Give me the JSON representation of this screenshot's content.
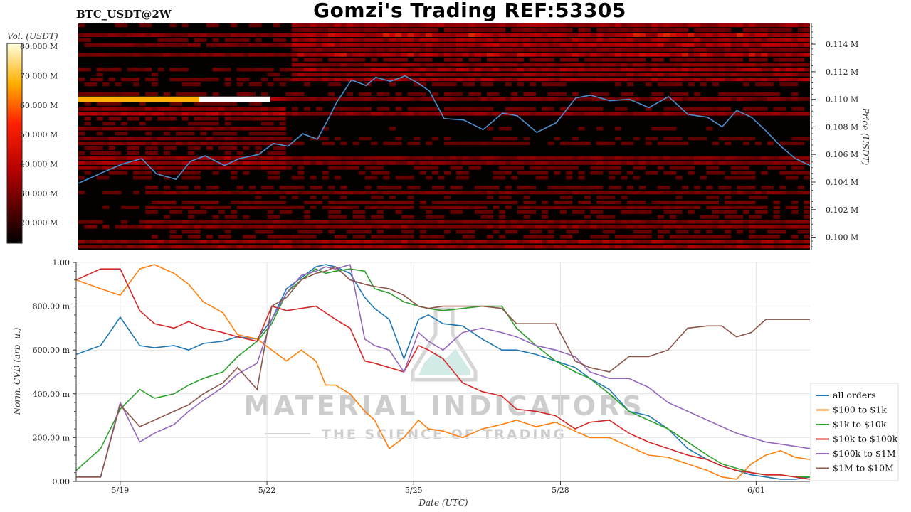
{
  "header": {
    "title": "Gomzi's Trading REF:53305",
    "symbol": "BTC_USDT@2W"
  },
  "watermark": {
    "line1": "MATERIAL INDICATORS",
    "line2": "THE SCIENCE OF TRADING"
  },
  "chart_data": [
    {
      "type": "heatmap",
      "title": "",
      "colorbar": {
        "label": "Vol. (USDT)",
        "ticks": [
          "80.000 M",
          "70.000 M",
          "60.000 M",
          "50.000 M",
          "40.000 M",
          "30.000 M",
          "20.000 M"
        ],
        "tick_values": [
          80,
          70,
          60,
          50,
          40,
          30,
          20
        ],
        "range": [
          13,
          81
        ],
        "colormap": "hot"
      },
      "ylabel": "Price (USDT)",
      "ylim": [
        0.0991,
        0.1155
      ],
      "yticks": [
        "0.114 M",
        "0.112 M",
        "0.110 M",
        "0.108 M",
        "0.106 M",
        "0.104 M",
        "0.102 M",
        "0.100 M"
      ],
      "ytick_values": [
        0.114,
        0.112,
        0.11,
        0.108,
        0.106,
        0.104,
        0.102,
        0.1
      ],
      "xlim": [
        0,
        15
      ],
      "price_line": {
        "color": "#4a90d0",
        "x": [
          0,
          0.5,
          0.9,
          1.3,
          1.6,
          2.0,
          2.3,
          2.6,
          3.0,
          3.3,
          3.7,
          4.0,
          4.3,
          4.6,
          4.9,
          5.1,
          5.3,
          5.6,
          5.9,
          6.1,
          6.4,
          6.7,
          7.0,
          7.2,
          7.5,
          7.9,
          8.3,
          8.7,
          9.0,
          9.4,
          9.8,
          10.2,
          10.5,
          10.9,
          11.3,
          11.7,
          12.1,
          12.5,
          12.9,
          13.2,
          13.5,
          13.8,
          14.1,
          14.4,
          14.7,
          15.0
        ],
        "y": [
          0.1039,
          0.1047,
          0.1053,
          0.1057,
          0.1046,
          0.1042,
          0.1055,
          0.1059,
          0.1052,
          0.1057,
          0.106,
          0.1068,
          0.1066,
          0.1075,
          0.1071,
          0.1084,
          0.1098,
          0.1114,
          0.111,
          0.1116,
          0.1113,
          0.1117,
          0.1111,
          0.1106,
          0.1086,
          0.1085,
          0.1078,
          0.109,
          0.1088,
          0.1076,
          0.1083,
          0.1101,
          0.1103,
          0.1099,
          0.11,
          0.1094,
          0.1102,
          0.1089,
          0.1087,
          0.108,
          0.1092,
          0.1087,
          0.1077,
          0.1066,
          0.1057,
          0.1052
        ]
      }
    },
    {
      "type": "line",
      "title": "",
      "xlabel": "Date (UTC)",
      "ylabel": "Norm. CVD (arb. u.)",
      "ylim": [
        0,
        1
      ],
      "yticks": [
        "0.00",
        "200.00 m",
        "400.00 m",
        "600.00 m",
        "800.00 m",
        "1.00"
      ],
      "ytick_values": [
        0,
        0.2,
        0.4,
        0.6,
        0.8,
        1.0
      ],
      "xlim": [
        0,
        15
      ],
      "xticks": [
        "5/19",
        "5/22",
        "5/25",
        "5/28",
        "6/01"
      ],
      "xtick_values": [
        0.9,
        3.9,
        6.9,
        9.9,
        13.9
      ],
      "legend_position": "right",
      "x": [
        0,
        0.5,
        0.9,
        1.3,
        1.6,
        2.0,
        2.3,
        2.6,
        3.0,
        3.3,
        3.7,
        4.0,
        4.3,
        4.6,
        4.9,
        5.1,
        5.3,
        5.6,
        5.9,
        6.1,
        6.4,
        6.7,
        7.0,
        7.2,
        7.5,
        7.9,
        8.3,
        8.7,
        9.0,
        9.4,
        9.8,
        10.2,
        10.5,
        10.9,
        11.3,
        11.7,
        12.1,
        12.5,
        12.9,
        13.2,
        13.5,
        13.8,
        14.1,
        14.4,
        14.7,
        15.0
      ],
      "series": [
        {
          "name": "all orders",
          "color": "#1f77b4",
          "values": [
            0.58,
            0.62,
            0.75,
            0.62,
            0.61,
            0.62,
            0.6,
            0.63,
            0.64,
            0.66,
            0.65,
            0.74,
            0.88,
            0.93,
            0.98,
            0.99,
            0.98,
            0.95,
            0.84,
            0.79,
            0.74,
            0.56,
            0.74,
            0.76,
            0.72,
            0.71,
            0.65,
            0.6,
            0.6,
            0.58,
            0.55,
            0.52,
            0.47,
            0.42,
            0.32,
            0.3,
            0.24,
            0.15,
            0.1,
            0.07,
            0.05,
            0.03,
            0.02,
            0.01,
            0.01,
            0.02
          ]
        },
        {
          "name": "$100 to $1k",
          "color": "#ff7f0e",
          "values": [
            0.92,
            0.88,
            0.85,
            0.97,
            0.99,
            0.95,
            0.9,
            0.82,
            0.77,
            0.67,
            0.65,
            0.6,
            0.55,
            0.6,
            0.55,
            0.44,
            0.44,
            0.4,
            0.32,
            0.28,
            0.15,
            0.2,
            0.28,
            0.24,
            0.23,
            0.2,
            0.24,
            0.26,
            0.28,
            0.25,
            0.27,
            0.23,
            0.2,
            0.2,
            0.16,
            0.12,
            0.11,
            0.08,
            0.05,
            0.02,
            0.01,
            0.08,
            0.12,
            0.14,
            0.11,
            0.1
          ]
        },
        {
          "name": "$1k to $10k",
          "color": "#2ca02c",
          "values": [
            0.05,
            0.15,
            0.33,
            0.42,
            0.38,
            0.4,
            0.44,
            0.47,
            0.5,
            0.57,
            0.64,
            0.72,
            0.86,
            0.92,
            0.97,
            0.95,
            0.96,
            0.97,
            0.96,
            0.88,
            0.86,
            0.82,
            0.8,
            0.79,
            0.78,
            0.79,
            0.8,
            0.8,
            0.7,
            0.62,
            0.55,
            0.5,
            0.47,
            0.4,
            0.32,
            0.28,
            0.24,
            0.18,
            0.12,
            0.08,
            0.06,
            0.04,
            0.03,
            0.03,
            0.02,
            0.02
          ]
        },
        {
          "name": "$10k to $100k",
          "color": "#d62728",
          "values": [
            0.92,
            0.97,
            0.97,
            0.78,
            0.72,
            0.7,
            0.73,
            0.7,
            0.68,
            0.66,
            0.64,
            0.8,
            0.78,
            0.79,
            0.8,
            0.77,
            0.74,
            0.7,
            0.55,
            0.54,
            0.52,
            0.5,
            0.62,
            0.6,
            0.56,
            0.45,
            0.41,
            0.39,
            0.33,
            0.32,
            0.3,
            0.24,
            0.27,
            0.28,
            0.22,
            0.18,
            0.15,
            0.12,
            0.1,
            0.07,
            0.05,
            0.04,
            0.03,
            0.03,
            0.02,
            0.01
          ]
        },
        {
          "name": "$100k to $1M",
          "color": "#9467bd",
          "values": [
            0.02,
            0.02,
            0.36,
            0.18,
            0.22,
            0.26,
            0.32,
            0.37,
            0.43,
            0.49,
            0.54,
            0.74,
            0.86,
            0.94,
            0.96,
            0.98,
            0.97,
            0.99,
            0.65,
            0.62,
            0.6,
            0.5,
            0.68,
            0.64,
            0.6,
            0.68,
            0.7,
            0.68,
            0.66,
            0.62,
            0.6,
            0.57,
            0.5,
            0.47,
            0.47,
            0.43,
            0.36,
            0.32,
            0.28,
            0.25,
            0.22,
            0.2,
            0.18,
            0.17,
            0.16,
            0.15
          ]
        },
        {
          "name": "$1M to $10M",
          "color": "#8c564b",
          "values": [
            0.02,
            0.02,
            0.35,
            0.25,
            0.28,
            0.32,
            0.35,
            0.4,
            0.45,
            0.52,
            0.42,
            0.8,
            0.84,
            0.92,
            0.95,
            0.96,
            0.98,
            0.92,
            0.9,
            0.89,
            0.88,
            0.85,
            0.8,
            0.79,
            0.8,
            0.8,
            0.8,
            0.79,
            0.72,
            0.72,
            0.72,
            0.55,
            0.52,
            0.5,
            0.57,
            0.57,
            0.6,
            0.7,
            0.71,
            0.71,
            0.66,
            0.68,
            0.74,
            0.74,
            0.74,
            0.74
          ]
        }
      ]
    }
  ]
}
